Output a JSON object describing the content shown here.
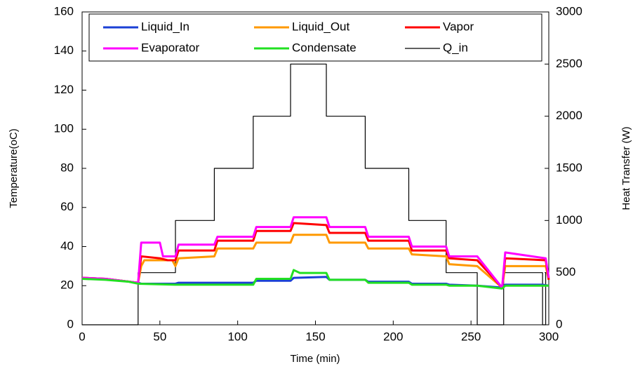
{
  "chart_data": {
    "type": "line",
    "xlabel": "Time (min)",
    "ylabel": "Temperature(oC)",
    "y2label": "Heat Transfer (W)",
    "xlim": [
      0,
      300
    ],
    "xticks": [
      0,
      50,
      100,
      150,
      200,
      250,
      300
    ],
    "ylim": [
      0,
      160
    ],
    "yticks": [
      0,
      20,
      40,
      60,
      80,
      100,
      120,
      140,
      160
    ],
    "y2lim": [
      0,
      3000
    ],
    "y2ticks": [
      0,
      500,
      1000,
      1500,
      2000,
      2500,
      3000
    ],
    "legend": "top",
    "series": [
      {
        "name": "Q_in",
        "color": "#000000",
        "axis": "y2",
        "x": [
          0,
          36,
          36,
          60,
          60,
          85,
          85,
          110,
          110,
          134,
          134,
          157,
          157,
          182,
          182,
          210,
          210,
          234,
          234,
          254,
          254,
          271,
          271,
          296,
          296,
          298,
          298,
          300
        ],
        "values": [
          0,
          0,
          500,
          500,
          1000,
          1000,
          1500,
          1500,
          2000,
          2000,
          2500,
          2500,
          2000,
          2000,
          1500,
          1500,
          1000,
          1000,
          500,
          500,
          0,
          0,
          500,
          500,
          0,
          0,
          500,
          500
        ]
      },
      {
        "name": "Liquid_In",
        "color": "#1a3fd6",
        "x": [
          0,
          15,
          36,
          38,
          60,
          62,
          110,
          112,
          134,
          136,
          157,
          159,
          182,
          184,
          210,
          212,
          234,
          236,
          254,
          270,
          272,
          296,
          300
        ],
        "values": [
          24,
          23.5,
          21.5,
          21,
          21,
          21.5,
          21.5,
          22.5,
          22.5,
          24,
          24.5,
          23,
          23,
          22,
          22,
          21,
          21,
          20.5,
          20,
          19,
          20.5,
          20.5,
          20
        ]
      },
      {
        "name": "Liquid_Out",
        "color": "#ff9900",
        "x": [
          0,
          15,
          36,
          38,
          40,
          58,
          60,
          62,
          85,
          87,
          110,
          112,
          134,
          136,
          157,
          159,
          182,
          184,
          210,
          212,
          234,
          236,
          254,
          270,
          272,
          298,
          300
        ],
        "values": [
          24,
          23.5,
          21.5,
          30,
          33,
          33,
          30,
          34,
          35,
          39,
          39,
          42,
          42,
          46,
          46,
          42,
          42,
          39,
          39,
          36,
          35,
          31,
          30,
          19,
          30,
          30,
          23
        ]
      },
      {
        "name": "Vapor",
        "color": "#ff0000",
        "x": [
          0,
          15,
          36,
          38,
          50,
          55,
          60,
          62,
          85,
          87,
          110,
          112,
          134,
          136,
          157,
          159,
          182,
          184,
          210,
          212,
          234,
          236,
          254,
          270,
          272,
          298,
          300
        ],
        "values": [
          24,
          23.5,
          21.5,
          35,
          34,
          33,
          33,
          38,
          38,
          43,
          43,
          48,
          48,
          52,
          51,
          47,
          47,
          43,
          43,
          38,
          38,
          34,
          33,
          19,
          34,
          33,
          23
        ]
      },
      {
        "name": "Evaporator",
        "color": "#ff00ff",
        "x": [
          0,
          15,
          36,
          38,
          50,
          52,
          60,
          62,
          85,
          87,
          110,
          112,
          134,
          136,
          157,
          159,
          182,
          184,
          210,
          212,
          234,
          236,
          254,
          270,
          272,
          298,
          300
        ],
        "values": [
          24,
          23.5,
          21.5,
          42,
          42,
          35,
          35,
          41,
          41,
          45,
          45,
          50,
          50,
          55,
          55,
          50,
          50,
          45,
          45,
          40,
          40,
          35,
          35,
          19,
          37,
          34,
          24
        ]
      },
      {
        "name": "Condensate",
        "color": "#22e022",
        "x": [
          0,
          15,
          30,
          36,
          60,
          110,
          112,
          134,
          136,
          140,
          157,
          159,
          182,
          184,
          210,
          212,
          234,
          236,
          254,
          270,
          272,
          300
        ],
        "values": [
          23.5,
          23,
          22,
          21,
          20.5,
          20.5,
          23.5,
          23.5,
          28,
          26.5,
          26.5,
          23,
          23,
          21.5,
          21.5,
          20.5,
          20.5,
          20,
          20,
          18.5,
          20,
          20
        ]
      }
    ]
  }
}
